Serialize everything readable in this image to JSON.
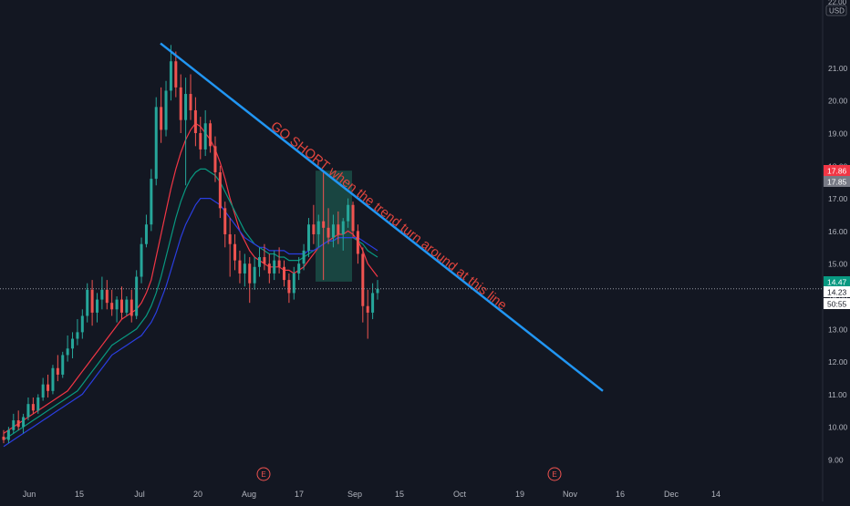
{
  "chart_data": {
    "type": "candlestick",
    "symbol_currency": "USD",
    "y_axis": {
      "ticks": [
        9.0,
        10.0,
        11.0,
        12.0,
        13.0,
        14.0,
        15.0,
        16.0,
        17.0,
        18.0,
        19.0,
        20.0,
        21.0,
        22.0
      ],
      "tick_labels": [
        "9.00",
        "10.00",
        "11.00",
        "12.00",
        "13.00",
        "14.00",
        "15.00",
        "16.00",
        "17.00",
        "18.00",
        "19.00",
        "20.00",
        "21.00",
        "22.00"
      ],
      "top_label": "22.00",
      "ylim": [
        8.35,
        22.3
      ],
      "position": "right"
    },
    "x_axis": {
      "tick_labels": [
        "Jun",
        "15",
        "Jul",
        "20",
        "Aug",
        "17",
        "Sep",
        "15",
        "Oct",
        "19",
        "Nov",
        "16",
        "Dec",
        "14"
      ],
      "earnings_markers": [
        "E",
        "E"
      ]
    },
    "grid": false,
    "price_labels": {
      "red_level": "17.86",
      "gray_level": "17.85",
      "green_level": "14.47",
      "current_price": "14.23",
      "countdown": "50:55"
    },
    "price_levels": {
      "red_level": 17.86,
      "gray_level": 17.85,
      "green_level": 14.47,
      "current_price": 14.23
    },
    "annotation": {
      "text": "GO SHORT when the trend turn around at this line",
      "color": "#e0453e"
    },
    "trendline": {
      "start_price": 21.75,
      "end_price": 11.1,
      "color": "#2196f3"
    },
    "range_box": {
      "top_price": 17.85,
      "bottom_price": 14.45,
      "color": "#1b4d47"
    },
    "candles": [
      [
        9.7,
        9.9,
        9.5,
        9.6
      ],
      [
        9.6,
        10.0,
        9.5,
        9.9
      ],
      [
        9.9,
        10.4,
        9.8,
        10.2
      ],
      [
        10.2,
        10.5,
        9.9,
        10.0
      ],
      [
        10.0,
        10.4,
        9.8,
        10.3
      ],
      [
        10.3,
        10.9,
        10.2,
        10.7
      ],
      [
        10.7,
        10.9,
        10.4,
        10.5
      ],
      [
        10.5,
        11.0,
        10.4,
        10.9
      ],
      [
        10.9,
        11.5,
        10.8,
        11.3
      ],
      [
        11.3,
        11.6,
        10.9,
        11.1
      ],
      [
        11.1,
        11.9,
        11.0,
        11.8
      ],
      [
        11.8,
        12.2,
        11.4,
        11.6
      ],
      [
        11.6,
        12.3,
        11.5,
        12.2
      ],
      [
        12.2,
        12.8,
        12.0,
        12.4
      ],
      [
        12.4,
        12.9,
        12.1,
        12.7
      ],
      [
        12.7,
        13.3,
        12.5,
        12.9
      ],
      [
        12.9,
        13.6,
        12.7,
        13.4
      ],
      [
        13.4,
        14.4,
        13.2,
        14.2
      ],
      [
        14.2,
        14.5,
        13.1,
        13.5
      ],
      [
        13.5,
        14.1,
        13.2,
        13.9
      ],
      [
        13.9,
        14.6,
        13.6,
        14.2
      ],
      [
        14.2,
        14.5,
        13.6,
        13.8
      ],
      [
        13.8,
        14.2,
        13.4,
        13.6
      ],
      [
        13.6,
        14.0,
        13.2,
        13.9
      ],
      [
        13.9,
        14.3,
        13.3,
        13.5
      ],
      [
        13.5,
        14.0,
        13.4,
        13.9
      ],
      [
        13.9,
        14.2,
        13.2,
        13.4
      ],
      [
        13.4,
        14.8,
        13.3,
        14.6
      ],
      [
        14.6,
        15.8,
        14.4,
        15.6
      ],
      [
        15.6,
        16.5,
        15.5,
        16.2
      ],
      [
        16.2,
        17.9,
        16.0,
        17.6
      ],
      [
        17.6,
        20.1,
        17.4,
        19.8
      ],
      [
        19.8,
        20.4,
        18.7,
        19.1
      ],
      [
        19.1,
        20.6,
        18.9,
        20.3
      ],
      [
        20.3,
        21.7,
        20.0,
        21.2
      ],
      [
        21.2,
        21.5,
        20.1,
        20.4
      ],
      [
        20.4,
        20.8,
        19.0,
        19.4
      ],
      [
        19.4,
        20.7,
        17.4,
        20.2
      ],
      [
        20.2,
        20.8,
        19.4,
        19.7
      ],
      [
        19.7,
        20.1,
        18.6,
        19.0
      ],
      [
        19.0,
        19.5,
        18.2,
        18.5
      ],
      [
        18.5,
        19.7,
        18.3,
        19.3
      ],
      [
        19.3,
        19.4,
        18.4,
        18.6
      ],
      [
        18.6,
        18.9,
        17.5,
        17.8
      ],
      [
        17.8,
        18.0,
        16.4,
        16.7
      ],
      [
        16.7,
        16.9,
        15.5,
        15.9
      ],
      [
        15.9,
        16.4,
        14.6,
        15.6
      ],
      [
        15.6,
        15.9,
        14.8,
        15.1
      ],
      [
        15.1,
        15.4,
        14.4,
        14.7
      ],
      [
        14.7,
        15.3,
        14.3,
        15.0
      ],
      [
        15.0,
        15.2,
        13.8,
        14.4
      ],
      [
        14.4,
        15.2,
        14.2,
        14.9
      ],
      [
        14.9,
        15.5,
        14.6,
        15.2
      ],
      [
        15.2,
        15.6,
        14.8,
        15.0
      ],
      [
        15.0,
        15.3,
        14.4,
        14.7
      ],
      [
        14.7,
        15.4,
        14.5,
        15.1
      ],
      [
        15.1,
        15.5,
        14.7,
        14.9
      ],
      [
        14.9,
        15.1,
        14.3,
        14.5
      ],
      [
        14.5,
        14.7,
        13.8,
        14.1
      ],
      [
        14.1,
        14.9,
        13.9,
        14.7
      ],
      [
        14.7,
        15.2,
        14.5,
        15.0
      ],
      [
        15.0,
        15.6,
        14.8,
        15.4
      ],
      [
        15.4,
        16.4,
        15.2,
        16.2
      ],
      [
        16.2,
        16.8,
        15.6,
        15.9
      ],
      [
        15.9,
        16.5,
        15.5,
        16.3
      ],
      [
        16.3,
        17.8,
        14.5,
        16.1
      ],
      [
        16.1,
        16.7,
        15.6,
        15.8
      ],
      [
        15.8,
        16.5,
        15.5,
        16.2
      ],
      [
        16.2,
        16.6,
        15.6,
        15.9
      ],
      [
        15.9,
        16.4,
        15.4,
        16.3
      ],
      [
        16.3,
        17.0,
        16.1,
        16.8
      ],
      [
        16.8,
        16.9,
        15.8,
        16.0
      ],
      [
        16.0,
        16.2,
        15.0,
        15.3
      ],
      [
        15.3,
        15.5,
        13.2,
        13.7
      ],
      [
        13.7,
        14.2,
        12.7,
        13.5
      ],
      [
        13.5,
        14.4,
        13.3,
        14.1
      ],
      [
        14.1,
        14.5,
        13.9,
        14.23
      ]
    ],
    "moving_averages": [
      {
        "color": "#f23645",
        "values": [
          9.8,
          9.9,
          10.0,
          10.1,
          10.2,
          10.3,
          10.4,
          10.5,
          10.6,
          10.7,
          10.8,
          10.9,
          11.0,
          11.1,
          11.3,
          11.5,
          11.7,
          11.9,
          12.1,
          12.3,
          12.5,
          12.7,
          12.9,
          13.1,
          13.3,
          13.4,
          13.5,
          13.6,
          13.8,
          14.1,
          14.5,
          15.2,
          15.9,
          16.6,
          17.3,
          17.9,
          18.4,
          18.8,
          19.1,
          19.3,
          19.2,
          19.0,
          18.8,
          18.5,
          18.1,
          17.6,
          17.0,
          16.5,
          16.0,
          15.7,
          15.4,
          15.2,
          15.1,
          15.0,
          14.9,
          14.9,
          14.9,
          14.8,
          14.8,
          14.7,
          14.8,
          14.9,
          15.1,
          15.3,
          15.5,
          15.6,
          15.7,
          15.8,
          15.9,
          15.9,
          16.0,
          15.9,
          15.7,
          15.4,
          15.0,
          14.8,
          14.6
        ]
      },
      {
        "color": "#089981",
        "values": [
          9.6,
          9.7,
          9.8,
          9.9,
          10.0,
          10.1,
          10.2,
          10.3,
          10.4,
          10.5,
          10.6,
          10.7,
          10.8,
          10.9,
          11.0,
          11.1,
          11.3,
          11.5,
          11.7,
          11.9,
          12.1,
          12.3,
          12.5,
          12.6,
          12.7,
          12.8,
          12.9,
          13.0,
          13.2,
          13.4,
          13.7,
          14.1,
          14.6,
          15.2,
          15.8,
          16.4,
          16.9,
          17.3,
          17.6,
          17.8,
          17.9,
          17.9,
          17.8,
          17.7,
          17.5,
          17.2,
          16.9,
          16.6,
          16.3,
          16.0,
          15.8,
          15.6,
          15.5,
          15.4,
          15.3,
          15.3,
          15.2,
          15.2,
          15.1,
          15.1,
          15.1,
          15.2,
          15.3,
          15.4,
          15.5,
          15.6,
          15.7,
          15.7,
          15.8,
          15.8,
          15.8,
          15.8,
          15.7,
          15.6,
          15.4,
          15.3,
          15.2
        ]
      },
      {
        "color": "#2a3ee0",
        "values": [
          9.4,
          9.5,
          9.6,
          9.7,
          9.8,
          9.9,
          10.0,
          10.1,
          10.2,
          10.3,
          10.4,
          10.5,
          10.6,
          10.7,
          10.8,
          10.9,
          11.0,
          11.2,
          11.4,
          11.6,
          11.8,
          12.0,
          12.2,
          12.3,
          12.4,
          12.5,
          12.6,
          12.7,
          12.8,
          13.0,
          13.2,
          13.5,
          13.9,
          14.3,
          14.8,
          15.3,
          15.8,
          16.2,
          16.5,
          16.8,
          17.0,
          17.0,
          17.0,
          16.9,
          16.8,
          16.6,
          16.4,
          16.2,
          16.0,
          15.8,
          15.7,
          15.6,
          15.5,
          15.5,
          15.4,
          15.4,
          15.4,
          15.4,
          15.3,
          15.3,
          15.3,
          15.3,
          15.4,
          15.4,
          15.5,
          15.6,
          15.7,
          15.7,
          15.8,
          15.8,
          15.8,
          15.8,
          15.8,
          15.7,
          15.6,
          15.5,
          15.4
        ]
      }
    ],
    "colors": {
      "background": "#131722",
      "up": "#26a69a",
      "down": "#ef5350",
      "axis_text": "#b2b5be",
      "trendline": "#2196f3",
      "annotation": "#e0453e",
      "label_red": "#f23645",
      "label_gray": "#787b86",
      "label_green": "#089981",
      "label_current": "#ffffff"
    }
  }
}
